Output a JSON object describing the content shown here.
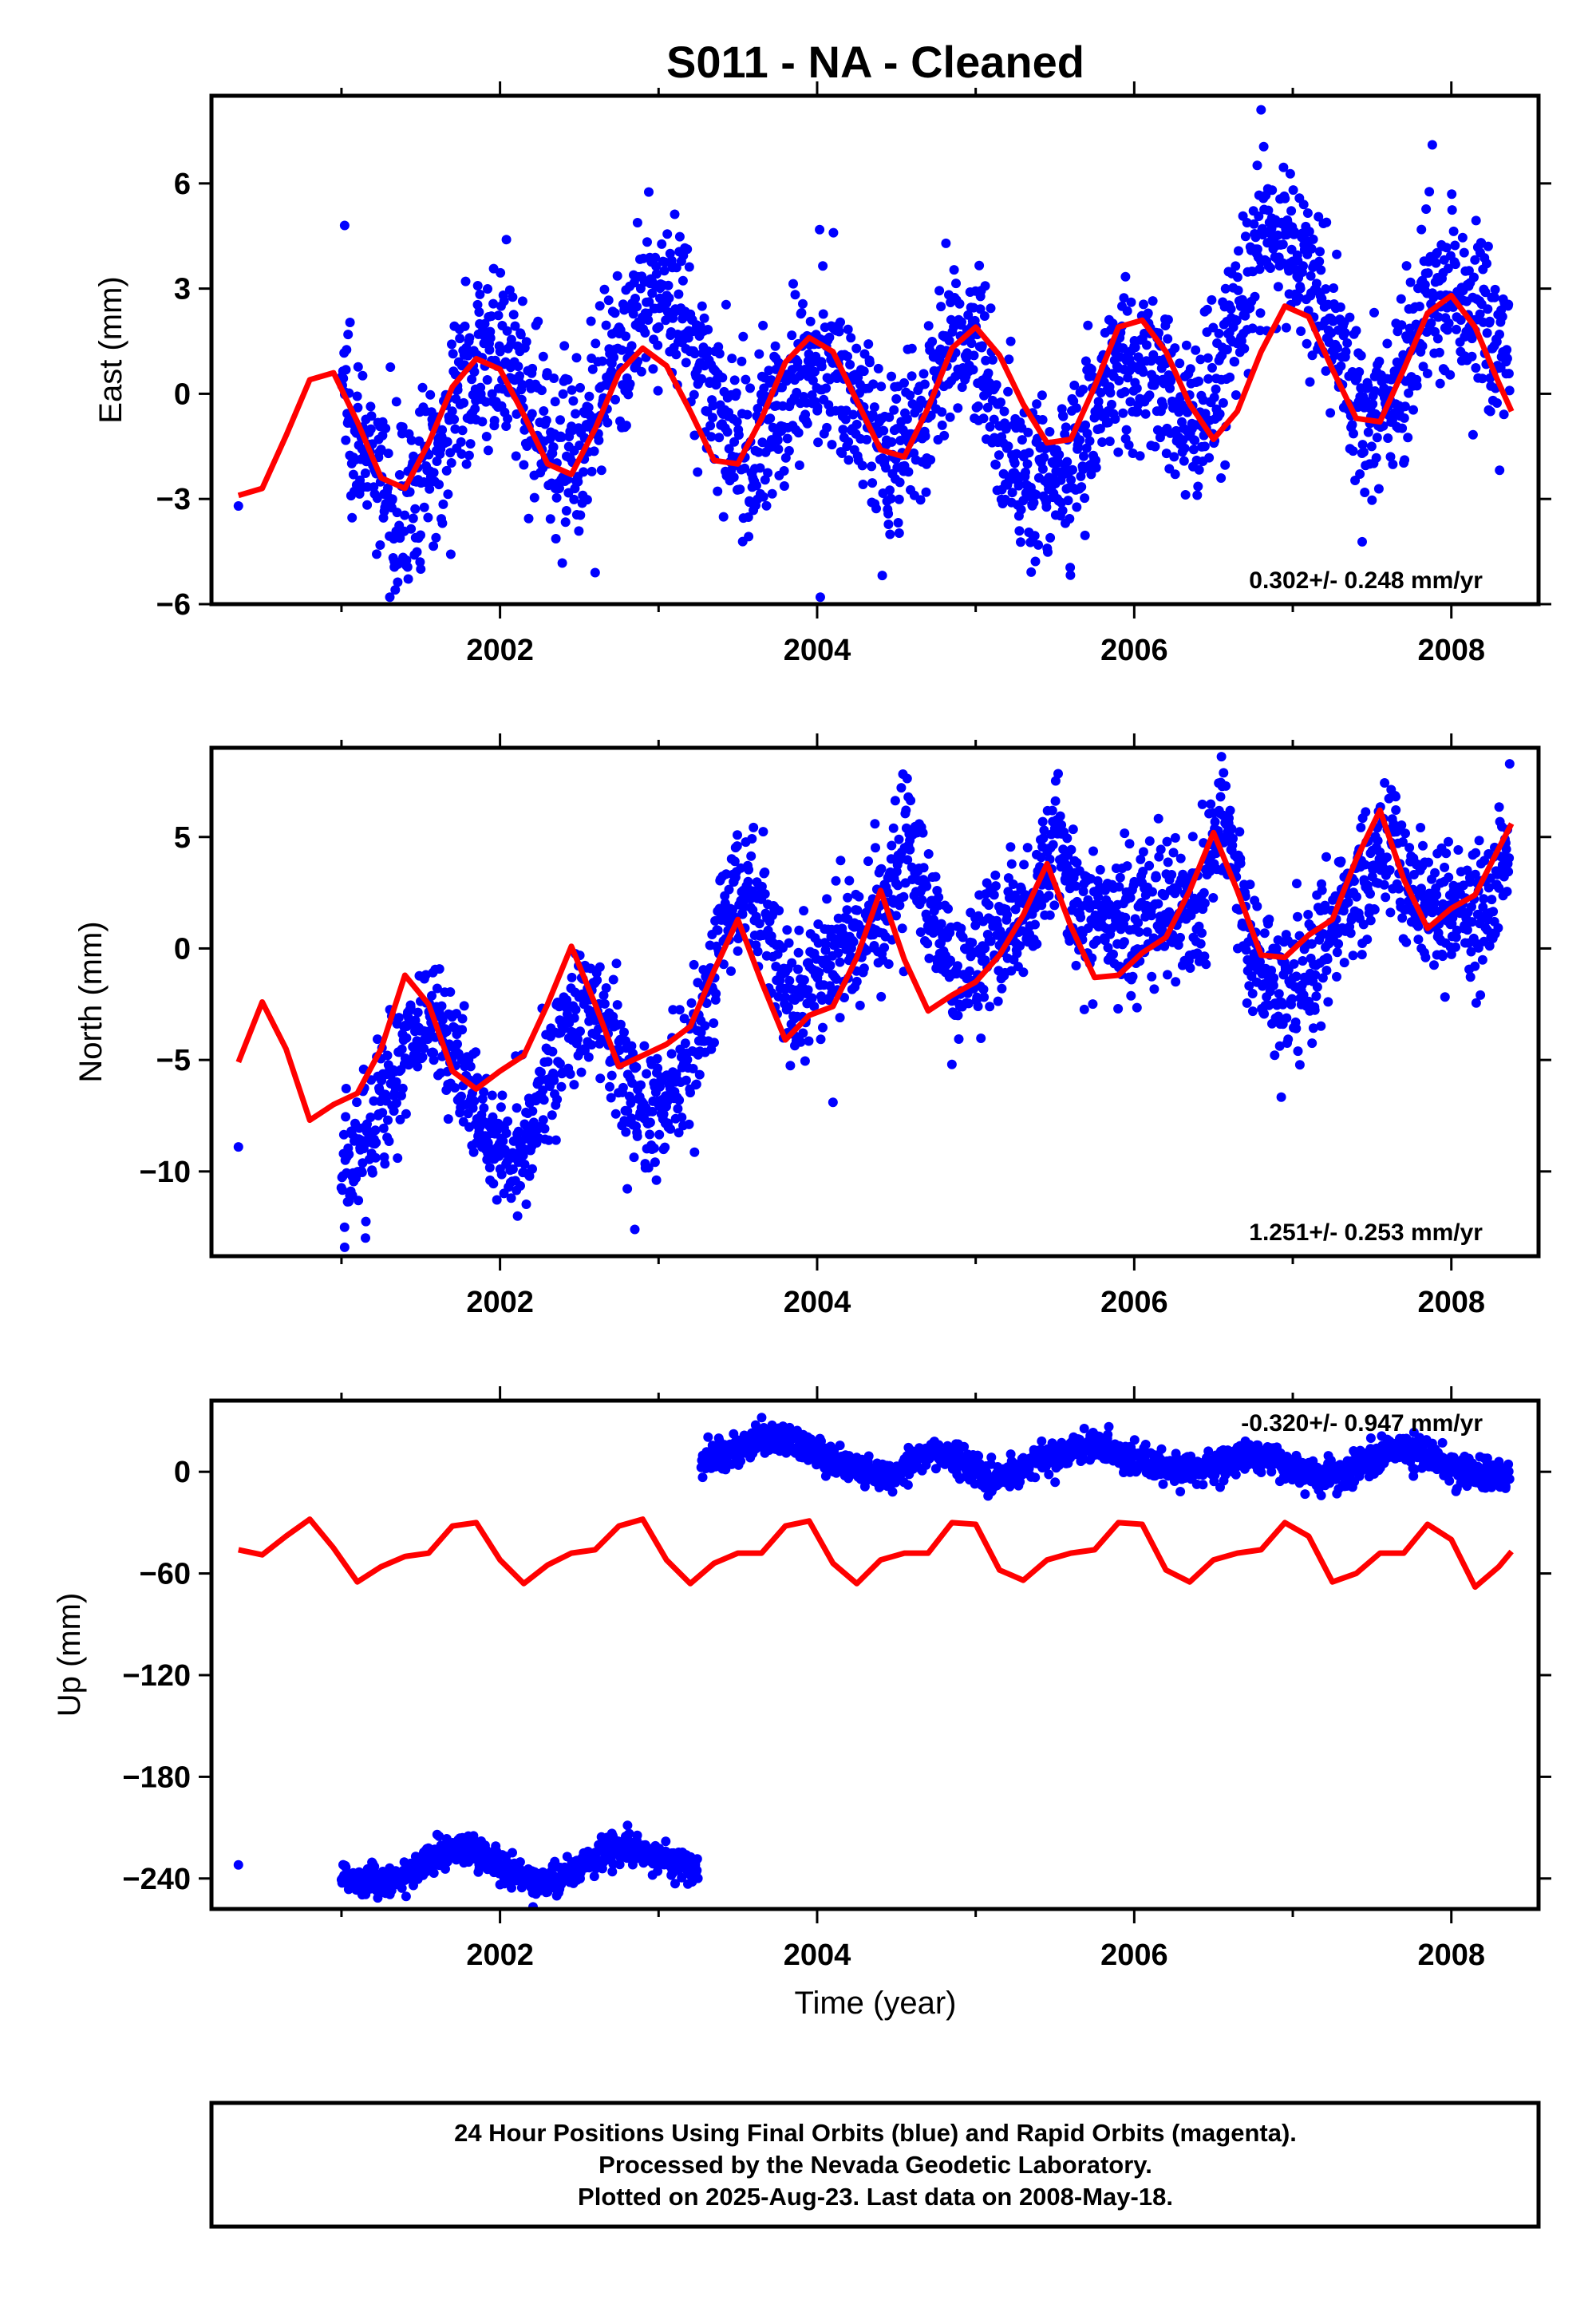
{
  "title": "S011  - NA - Cleaned",
  "xlabel": "Time (year)",
  "footer": [
    "24 Hour Positions Using Final Orbits (blue) and Rapid Orbits (magenta).",
    "Processed by the Nevada Geodetic Laboratory.",
    "Plotted on 2025-Aug-23. Last data on 2008-May-18."
  ],
  "colors": {
    "points": "#0000ff",
    "model": "#ff0000",
    "frame": "#000000"
  },
  "chart_data": [
    {
      "type": "scatter",
      "panel": "east",
      "ylabel": "East (mm)",
      "rate_label": "0.302+/- 0.248 mm/yr",
      "xlim": [
        2000.18,
        2008.55
      ],
      "ylim": [
        -6,
        8.5
      ],
      "xticks": [
        2002,
        2004,
        2006,
        2008
      ],
      "yticks": [
        -6,
        -3,
        0,
        3,
        6
      ],
      "ytick_labels": [
        "−6",
        "−3",
        "0",
        "3",
        "6"
      ],
      "model": {
        "x": [
          2000.35,
          2000.5,
          2000.65,
          2000.8,
          2000.95,
          2001.1,
          2001.25,
          2001.4,
          2001.55,
          2001.7,
          2001.85,
          2002.0,
          2002.15,
          2002.3,
          2002.45,
          2002.6,
          2002.75,
          2002.9,
          2003.05,
          2003.2,
          2003.35,
          2003.5,
          2003.65,
          2003.8,
          2003.95,
          2004.1,
          2004.25,
          2004.4,
          2004.55,
          2004.7,
          2004.85,
          2005.0,
          2005.15,
          2005.3,
          2005.45,
          2005.6,
          2005.75,
          2005.9,
          2006.05,
          2006.2,
          2006.35,
          2006.5,
          2006.65,
          2006.8,
          2006.95,
          2007.1,
          2007.25,
          2007.4,
          2007.55,
          2007.7,
          2007.85,
          2008.0,
          2008.15,
          2008.3,
          2008.38
        ],
        "y": [
          -2.9,
          -2.7,
          -1.2,
          0.4,
          0.6,
          -0.8,
          -2.4,
          -2.7,
          -1.4,
          0.2,
          1.0,
          0.7,
          -0.6,
          -2.0,
          -2.3,
          -1.0,
          0.6,
          1.3,
          0.8,
          -0.5,
          -1.9,
          -2.0,
          -0.7,
          0.9,
          1.6,
          1.2,
          -0.2,
          -1.6,
          -1.8,
          -0.4,
          1.3,
          1.9,
          1.1,
          -0.3,
          -1.4,
          -1.3,
          0.2,
          1.9,
          2.1,
          1.2,
          -0.3,
          -1.3,
          -0.5,
          1.2,
          2.5,
          2.2,
          0.7,
          -0.7,
          -0.8,
          0.7,
          2.3,
          2.8,
          1.9,
          0.3,
          -0.5
        ]
      },
      "scatter_trend": {
        "x": [
          2001.0,
          2001.15,
          2001.3,
          2001.45,
          2001.6,
          2001.75,
          2001.9,
          2002.05,
          2002.2,
          2002.35,
          2002.5,
          2002.65,
          2002.8,
          2002.95,
          2003.1,
          2003.25,
          2003.4,
          2003.55,
          2003.7,
          2003.85,
          2004.0,
          2004.15,
          2004.3,
          2004.45,
          2004.6,
          2004.75,
          2004.9,
          2005.05,
          2005.2,
          2005.35,
          2005.5,
          2005.65,
          2005.8,
          2005.95,
          2006.1,
          2006.25,
          2006.4,
          2006.55,
          2006.7,
          2006.85,
          2007.0,
          2007.15,
          2007.3,
          2007.45,
          2007.6,
          2007.75,
          2007.9,
          2008.05,
          2008.2,
          2008.37
        ],
        "y": [
          0.5,
          -1.8,
          -3.2,
          -3.0,
          -1.6,
          0.2,
          1.2,
          0.8,
          -0.4,
          -1.5,
          -1.5,
          -0.2,
          1.5,
          2.6,
          3.0,
          1.2,
          -0.8,
          -1.8,
          -1.0,
          0.4,
          1.2,
          0.6,
          -0.6,
          -1.8,
          -1.4,
          0.2,
          1.6,
          1.0,
          -1.6,
          -2.6,
          -2.4,
          -1.6,
          0.0,
          1.2,
          0.6,
          -0.4,
          -0.6,
          0.6,
          3.0,
          4.6,
          4.0,
          3.0,
          1.0,
          -0.8,
          -0.4,
          1.6,
          3.0,
          2.6,
          2.4,
          0.6
        ]
      },
      "scatter_spread": 1.2,
      "outliers": [
        [
          2000.35,
          -3.2
        ],
        [
          2001.02,
          4.8
        ],
        [
          2006.8,
          8.1
        ],
        [
          2007.88,
          7.1
        ],
        [
          2004.02,
          -5.8
        ],
        [
          2002.6,
          -5.1
        ],
        [
          2001.5,
          -5.0
        ]
      ]
    },
    {
      "type": "scatter",
      "panel": "north",
      "ylabel": "North (mm)",
      "rate_label": "1.251+/- 0.253 mm/yr",
      "xlim": [
        2000.18,
        2008.55
      ],
      "ylim": [
        -13.8,
        9
      ],
      "xticks": [
        2002,
        2004,
        2006,
        2008
      ],
      "yticks": [
        -10,
        -5,
        0,
        5
      ],
      "ytick_labels": [
        "−10",
        "−5",
        "0",
        "5"
      ],
      "model": {
        "x": [
          2000.35,
          2000.5,
          2000.65,
          2000.8,
          2000.95,
          2001.1,
          2001.25,
          2001.4,
          2001.55,
          2001.7,
          2001.85,
          2002.0,
          2002.15,
          2002.3,
          2002.45,
          2002.6,
          2002.75,
          2002.9,
          2003.05,
          2003.2,
          2003.35,
          2003.5,
          2003.65,
          2003.8,
          2003.95,
          2004.1,
          2004.25,
          2004.4,
          2004.55,
          2004.7,
          2004.85,
          2005.0,
          2005.15,
          2005.3,
          2005.45,
          2005.6,
          2005.75,
          2005.9,
          2006.05,
          2006.2,
          2006.35,
          2006.5,
          2006.65,
          2006.8,
          2006.95,
          2007.1,
          2007.25,
          2007.4,
          2007.55,
          2007.7,
          2007.85,
          2008.0,
          2008.15,
          2008.3,
          2008.38
        ],
        "y": [
          -5.1,
          -2.4,
          -4.5,
          -7.7,
          -7.0,
          -6.5,
          -4.5,
          -1.2,
          -2.5,
          -5.5,
          -6.3,
          -5.5,
          -4.8,
          -2.5,
          0.1,
          -2.5,
          -5.3,
          -4.8,
          -4.3,
          -3.5,
          -1.0,
          1.3,
          -1.5,
          -4.1,
          -3.0,
          -2.6,
          -0.4,
          2.6,
          -0.5,
          -2.8,
          -2.1,
          -1.5,
          -0.3,
          1.5,
          3.8,
          1.0,
          -1.3,
          -1.2,
          -0.2,
          0.5,
          2.6,
          5.2,
          2.6,
          -0.3,
          -0.4,
          0.6,
          1.3,
          4.0,
          6.2,
          3.1,
          0.9,
          1.8,
          2.4,
          4.5,
          5.6
        ]
      },
      "scatter_trend": {
        "x": [
          2001.0,
          2001.15,
          2001.3,
          2001.45,
          2001.6,
          2001.75,
          2001.9,
          2002.05,
          2002.2,
          2002.35,
          2002.5,
          2002.65,
          2002.8,
          2002.95,
          2003.1,
          2003.25,
          2003.4,
          2003.55,
          2003.7,
          2003.85,
          2004.0,
          2004.15,
          2004.3,
          2004.45,
          2004.6,
          2004.75,
          2004.9,
          2005.05,
          2005.2,
          2005.35,
          2005.5,
          2005.65,
          2005.8,
          2005.95,
          2006.1,
          2006.25,
          2006.4,
          2006.55,
          2006.7,
          2006.85,
          2007.0,
          2007.15,
          2007.3,
          2007.45,
          2007.6,
          2007.75,
          2007.9,
          2008.05,
          2008.2,
          2008.37
        ],
        "y": [
          -10.5,
          -8.5,
          -6.0,
          -4.0,
          -3.2,
          -5.5,
          -8.0,
          -9.5,
          -7.5,
          -5.0,
          -2.8,
          -3.0,
          -6.0,
          -8.0,
          -6.5,
          -4.0,
          1.0,
          3.0,
          0.5,
          -2.5,
          -1.5,
          0.5,
          1.0,
          1.5,
          5.2,
          0.5,
          -1.5,
          0.2,
          0.8,
          1.6,
          5.5,
          1.8,
          1.2,
          1.0,
          1.8,
          1.8,
          1.6,
          6.5,
          1.0,
          -1.5,
          -2.5,
          -0.5,
          1.5,
          3.8,
          5.0,
          2.5,
          1.5,
          1.8,
          1.0,
          5.5
        ]
      },
      "scatter_spread": 1.5,
      "outliers": [
        [
          2000.35,
          -8.9
        ],
        [
          2001.02,
          -13.4
        ],
        [
          2002.85,
          -12.6
        ],
        [
          2004.1,
          -6.9
        ],
        [
          2004.85,
          -5.2
        ],
        [
          2006.55,
          8.6
        ]
      ]
    },
    {
      "type": "scatter",
      "panel": "up",
      "ylabel": "Up (mm)",
      "rate_label": "-0.320+/- 0.947 mm/yr",
      "xlim": [
        2000.18,
        2008.55
      ],
      "ylim": [
        -258,
        42
      ],
      "xticks": [
        2002,
        2004,
        2006,
        2008
      ],
      "yticks": [
        -240,
        -180,
        -120,
        -60,
        0
      ],
      "ytick_labels": [
        "−240",
        "−180",
        "−120",
        "−60",
        "0"
      ],
      "model": {
        "x": [
          2000.35,
          2000.5,
          2000.65,
          2000.8,
          2000.95,
          2001.1,
          2001.25,
          2001.4,
          2001.55,
          2001.7,
          2001.85,
          2002.0,
          2002.15,
          2002.3,
          2002.45,
          2002.6,
          2002.75,
          2002.9,
          2003.05,
          2003.2,
          2003.35,
          2003.5,
          2003.65,
          2003.8,
          2003.95,
          2004.1,
          2004.25,
          2004.4,
          2004.55,
          2004.7,
          2004.85,
          2005.0,
          2005.15,
          2005.3,
          2005.45,
          2005.6,
          2005.75,
          2005.9,
          2006.05,
          2006.2,
          2006.35,
          2006.5,
          2006.65,
          2006.8,
          2006.95,
          2007.1,
          2007.25,
          2007.4,
          2007.55,
          2007.7,
          2007.85,
          2008.0,
          2008.15,
          2008.3,
          2008.38
        ],
        "y": [
          -46,
          -49,
          -38,
          -28,
          -45,
          -65,
          -56,
          -50,
          -48,
          -32,
          -30,
          -52,
          -66,
          -55,
          -48,
          -46,
          -32,
          -28,
          -52,
          -66,
          -54,
          -48,
          -48,
          -32,
          -29,
          -54,
          -66,
          -52,
          -48,
          -48,
          -30,
          -31,
          -58,
          -64,
          -52,
          -48,
          -46,
          -30,
          -31,
          -58,
          -65,
          -52,
          -48,
          -46,
          -30,
          -38,
          -65,
          -60,
          -48,
          -48,
          -31,
          -40,
          -68,
          -56,
          -47
        ]
      },
      "scatter_segments": [
        {
          "x": [
            2001.0,
            2001.15,
            2001.3,
            2001.45,
            2001.6,
            2001.75,
            2001.9,
            2002.05,
            2002.2,
            2002.35,
            2002.5,
            2002.65,
            2002.8,
            2002.95,
            2003.1,
            2003.25
          ],
          "y": [
            -238,
            -241,
            -242,
            -236,
            -226,
            -222,
            -226,
            -234,
            -242,
            -240,
            -234,
            -224,
            -222,
            -226,
            -230,
            -236
          ]
        },
        {
          "x": [
            2003.27,
            2003.45,
            2003.6,
            2003.75,
            2003.9,
            2004.05,
            2004.2,
            2004.35,
            2004.5,
            2004.65,
            2004.8,
            2004.95,
            2005.1,
            2005.25,
            2005.4,
            2005.55,
            2005.7,
            2005.85,
            2006.0,
            2006.15,
            2006.3,
            2006.45,
            2006.6,
            2006.75,
            2006.9,
            2007.05,
            2007.2,
            2007.35,
            2007.5,
            2007.65,
            2007.8,
            2007.95,
            2008.1,
            2008.25,
            2008.37
          ],
          "y": [
            8,
            12,
            18,
            20,
            14,
            8,
            4,
            -2,
            0,
            10,
            12,
            4,
            -4,
            0,
            6,
            12,
            16,
            12,
            6,
            4,
            0,
            2,
            6,
            10,
            6,
            0,
            -4,
            0,
            8,
            14,
            12,
            4,
            0,
            -2,
            -4
          ]
        }
      ],
      "scatter_spread": 4.5,
      "outliers": [
        [
          2000.35,
          -232
        ],
        [
          2003.65,
          32
        ]
      ]
    }
  ]
}
